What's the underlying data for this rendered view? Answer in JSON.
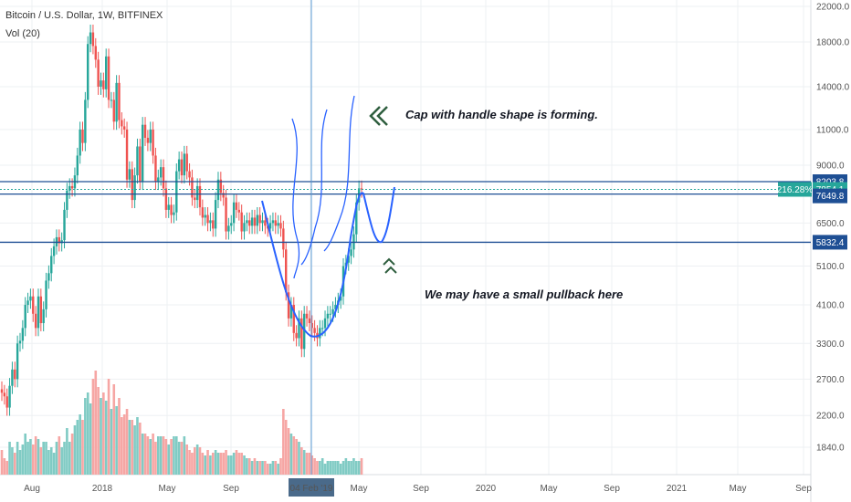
{
  "header": {
    "symbol_title": "Bitcoin / U.S. Dollar, 1W, BITFINEX",
    "volume_label": "Vol (20)"
  },
  "annotations": {
    "cup_note": "Cap with handle shape is forming.",
    "pullback_note": "We may have a small pullback here"
  },
  "colors": {
    "up": "#26a69a",
    "down": "#ef5350",
    "up_volume": "#80cbc4",
    "down_volume": "#f6a6a4",
    "line_blue": "#1e4f94",
    "drawing_blue": "#2962ff",
    "arrow_green": "#2e5e3e"
  },
  "chart_data": {
    "type": "candlestick",
    "title": "Bitcoin / U.S. Dollar, 1W, BITFINEX",
    "y_scale": "log",
    "y_range": [
      1500,
      22000
    ],
    "y_ticks": [
      "22000.0",
      "18000.0",
      "14000.0",
      "11000.0",
      "9000.0",
      "6500.0",
      "5100.0",
      "4100.0",
      "3300.0",
      "2700.0",
      "2200.0",
      "1840.0"
    ],
    "x_ticks": [
      "Aug",
      "2018",
      "May",
      "Sep",
      "04 Feb '19",
      "May",
      "Sep",
      "2020",
      "May",
      "Sep",
      "2021",
      "May",
      "Sep"
    ],
    "crosshair_label": "04 Feb '19",
    "horizontal_levels": [
      8203.8,
      7854.1,
      7649.8,
      5832.4
    ],
    "price_labels": {
      "resistance": "8203.8",
      "last_change": "216.28%",
      "last_price": "7854.1",
      "level_2": "7649.8",
      "support": "5832.4"
    },
    "weekly_closes": [
      2500,
      2450,
      2300,
      2600,
      2850,
      2700,
      3300,
      3350,
      3600,
      4100,
      4200,
      4300,
      3900,
      3600,
      4300,
      3700,
      4000,
      4700,
      4900,
      5400,
      5700,
      6000,
      5800,
      5900,
      7000,
      7800,
      8000,
      7900,
      8500,
      9500,
      11000,
      10200,
      13000,
      17800,
      19000,
      17600,
      16300,
      14000,
      14500,
      13800,
      16600,
      13000,
      13000,
      11500,
      14300,
      11600,
      11200,
      11000,
      8300,
      8800,
      7400,
      8500,
      10000,
      8200,
      11300,
      10500,
      10200,
      11000,
      9500,
      8200,
      8400,
      8900,
      7900,
      7000,
      7200,
      6800,
      6900,
      8700,
      9300,
      8500,
      9600,
      8700,
      8400,
      7500,
      7400,
      8000,
      7100,
      6700,
      6800,
      6500,
      6600,
      6300,
      7400,
      8300,
      7700,
      7500,
      6200,
      6400,
      6500,
      7300,
      7000,
      6900,
      6200,
      6500,
      6600,
      6400,
      6700,
      6400,
      6800,
      6500,
      6600,
      6400,
      6300,
      6500,
      6600,
      6400,
      6500,
      6300,
      5600,
      4400,
      3800,
      4100,
      3500,
      3400,
      3800,
      3200,
      3900,
      3800,
      3700,
      3600,
      3500,
      3400,
      3600,
      3600,
      3800,
      3900,
      3900,
      4000,
      4100,
      4200,
      4300,
      5100,
      5200,
      5400,
      5600,
      6100,
      7300,
      7900,
      7850
    ],
    "volume_relative": [
      0.09,
      0.06,
      0.05,
      0.12,
      0.1,
      0.08,
      0.12,
      0.09,
      0.11,
      0.15,
      0.12,
      0.13,
      0.11,
      0.14,
      0.13,
      0.1,
      0.12,
      0.12,
      0.09,
      0.1,
      0.08,
      0.12,
      0.14,
      0.1,
      0.12,
      0.17,
      0.12,
      0.15,
      0.18,
      0.2,
      0.22,
      0.2,
      0.28,
      0.3,
      0.26,
      0.35,
      0.38,
      0.32,
      0.28,
      0.3,
      0.27,
      0.35,
      0.24,
      0.33,
      0.25,
      0.28,
      0.21,
      0.22,
      0.24,
      0.2,
      0.2,
      0.18,
      0.21,
      0.19,
      0.15,
      0.15,
      0.14,
      0.13,
      0.15,
      0.12,
      0.14,
      0.14,
      0.14,
      0.13,
      0.11,
      0.13,
      0.14,
      0.14,
      0.12,
      0.12,
      0.14,
      0.11,
      0.09,
      0.08,
      0.1,
      0.11,
      0.1,
      0.08,
      0.07,
      0.09,
      0.07,
      0.08,
      0.09,
      0.08,
      0.08,
      0.08,
      0.09,
      0.07,
      0.07,
      0.08,
      0.09,
      0.08,
      0.08,
      0.07,
      0.06,
      0.06,
      0.05,
      0.06,
      0.05,
      0.05,
      0.05,
      0.05,
      0.04,
      0.04,
      0.05,
      0.05,
      0.04,
      0.06,
      0.24,
      0.2,
      0.17,
      0.15,
      0.14,
      0.13,
      0.12,
      0.1,
      0.09,
      0.08,
      0.08,
      0.07,
      0.06,
      0.05,
      0.05,
      0.06,
      0.04,
      0.05,
      0.05,
      0.05,
      0.05,
      0.05,
      0.04,
      0.05,
      0.06,
      0.05,
      0.05,
      0.06,
      0.05,
      0.05,
      0.06
    ]
  }
}
